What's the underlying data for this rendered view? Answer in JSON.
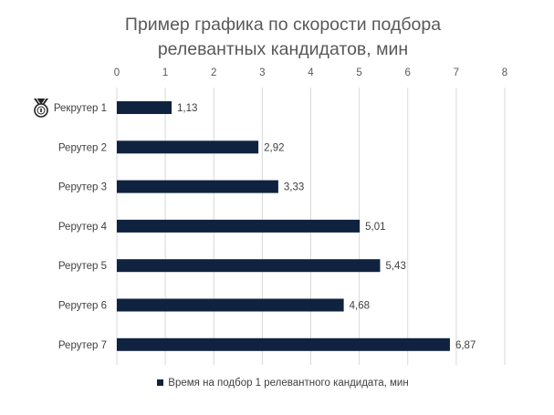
{
  "chart_data": {
    "type": "bar",
    "orientation": "horizontal",
    "title_lines": [
      "Пример графика по скорости подбора",
      "релевантных кандидатов, мин"
    ],
    "categories": [
      "Рекрутер 1",
      "Рерутер 2",
      "Рерутер 3",
      "Рерутер 4",
      "Рерутер 5",
      "Рерутер 6",
      "Рерутер 7"
    ],
    "series": [
      {
        "name": "Время на подбор 1 релевантного кандидата, мин",
        "values": [
          1.13,
          2.92,
          3.33,
          5.01,
          5.43,
          4.68,
          6.87
        ],
        "value_labels": [
          "1,13",
          "2,92",
          "3,33",
          "5,01",
          "5,43",
          "4,68",
          "6,87"
        ]
      }
    ],
    "xlim": [
      0,
      8
    ],
    "x_ticks": [
      0,
      1,
      2,
      3,
      4,
      5,
      6,
      7,
      8
    ],
    "x_axis_position": "top",
    "grid": true,
    "legend_position": "bottom",
    "bar_color": "#0f2340",
    "grid_color": "#d9d9d9",
    "medal_icon": "medal-icon",
    "medal_category_index": 0
  }
}
